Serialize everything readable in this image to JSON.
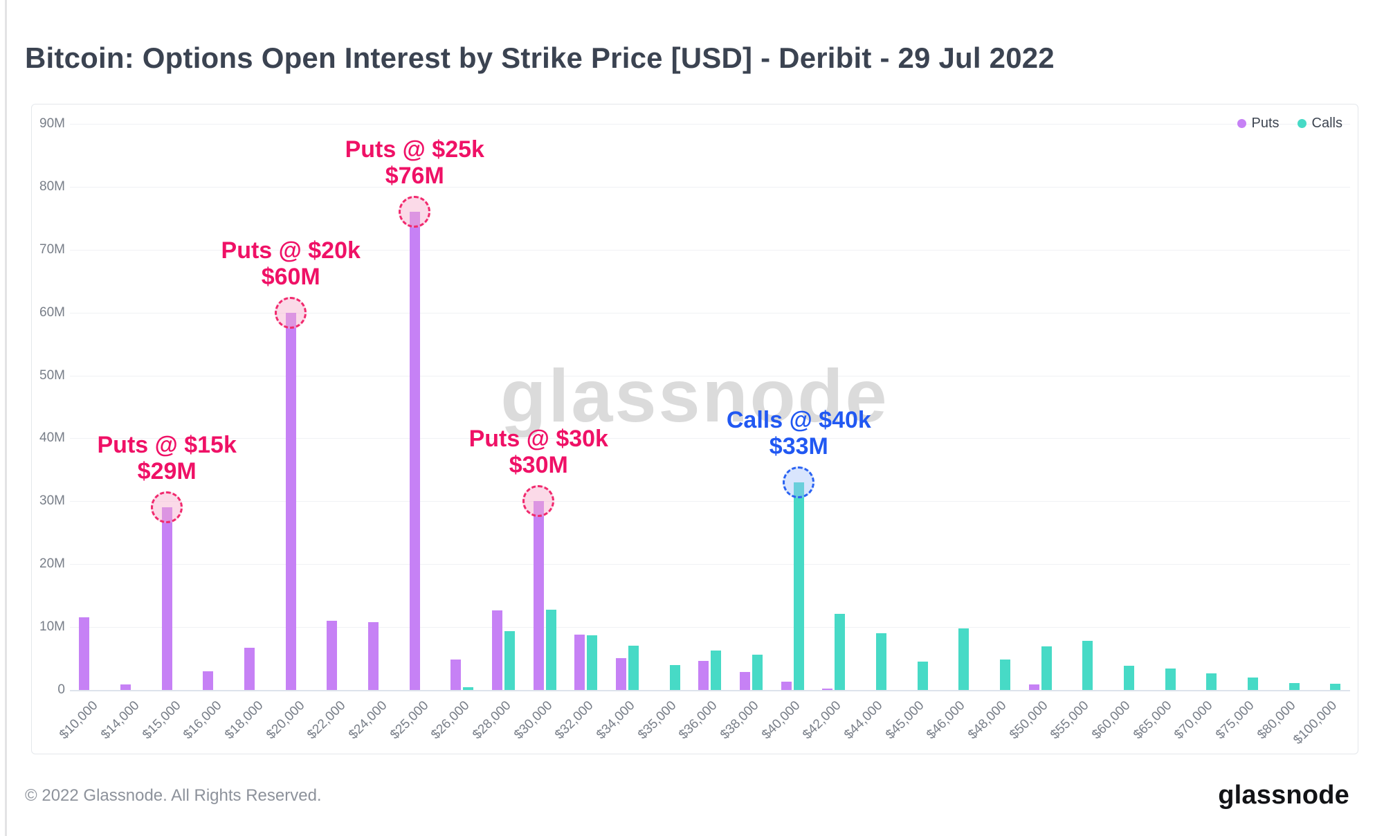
{
  "title": "Bitcoin: Options Open Interest by Strike Price [USD] - Deribit - 29 Jul 2022",
  "legend": {
    "puts_label": "Puts",
    "calls_label": "Calls"
  },
  "watermark": "glassnode",
  "footer": {
    "copyright": "© 2022 Glassnode. All Rights Reserved.",
    "logo": "glassnode"
  },
  "colors": {
    "puts": "#c681f5",
    "calls": "#47dac6",
    "annotation_pink": "#ef1166",
    "annotation_blue": "#2158f2",
    "watermark_gray": "#dbdbdb"
  },
  "chart_data": {
    "type": "bar",
    "title": "Bitcoin: Options Open Interest by Strike Price [USD] - Deribit - 29 Jul 2022",
    "xlabel": "",
    "ylabel": "",
    "ylim": [
      0,
      90
    ],
    "grid": true,
    "legend_position": "top-right",
    "ytick_labels": [
      "0",
      "10M",
      "20M",
      "30M",
      "40M",
      "50M",
      "60M",
      "70M",
      "80M",
      "90M"
    ],
    "categories": [
      "$10,000",
      "$14,000",
      "$15,000",
      "$16,000",
      "$18,000",
      "$20,000",
      "$22,000",
      "$24,000",
      "$25,000",
      "$26,000",
      "$28,000",
      "$30,000",
      "$32,000",
      "$34,000",
      "$35,000",
      "$36,000",
      "$38,000",
      "$40,000",
      "$42,000",
      "$44,000",
      "$45,000",
      "$46,000",
      "$48,000",
      "$50,000",
      "$55,000",
      "$60,000",
      "$65,000",
      "$70,000",
      "$75,000",
      "$80,000",
      "$100,000"
    ],
    "series": [
      {
        "name": "Puts",
        "color": "#c681f5",
        "values": [
          11.5,
          0.9,
          29,
          3,
          6.7,
          60,
          11,
          10.8,
          76,
          4.8,
          12.7,
          30,
          8.8,
          5.1,
          0,
          4.6,
          2.9,
          1.3,
          0.2,
          0,
          0,
          0,
          0,
          0.9,
          0,
          0,
          0,
          0,
          0,
          0,
          0
        ]
      },
      {
        "name": "Calls",
        "color": "#47dac6",
        "values": [
          0,
          0,
          0,
          0,
          0,
          0,
          0,
          0,
          0,
          0.4,
          9.3,
          12.8,
          8.7,
          7,
          4,
          6.3,
          5.6,
          33,
          12.1,
          9,
          4.5,
          9.8,
          4.8,
          6.9,
          7.8,
          3.9,
          3.4,
          2.6,
          2,
          1.1,
          1
        ]
      }
    ],
    "annotations": [
      {
        "line1": "Puts @ $15k",
        "line2": "$29M",
        "series": "Puts",
        "category_index": 2,
        "value": 29,
        "style": "pink"
      },
      {
        "line1": "Puts @ $20k",
        "line2": "$60M",
        "series": "Puts",
        "category_index": 5,
        "value": 60,
        "style": "pink"
      },
      {
        "line1": "Puts @ $25k",
        "line2": "$76M",
        "series": "Puts",
        "category_index": 8,
        "value": 76,
        "style": "pink"
      },
      {
        "line1": "Puts @ $30k",
        "line2": "$30M",
        "series": "Puts",
        "category_index": 11,
        "value": 30,
        "style": "pink"
      },
      {
        "line1": "Calls @ $40k",
        "line2": "$33M",
        "series": "Calls",
        "category_index": 17,
        "value": 33,
        "style": "blue"
      }
    ]
  }
}
